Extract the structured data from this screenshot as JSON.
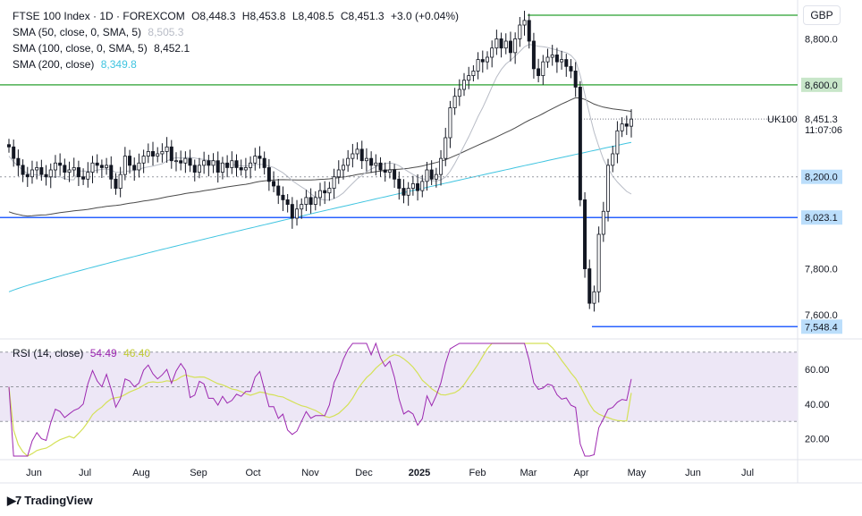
{
  "header": {
    "symbol": "FTSE 100 Index · 1D · FOREXCOM",
    "ohlc": {
      "o": "O8,448.3",
      "h": "H8,453.8",
      "l": "L8,408.5",
      "c": "C8,451.3",
      "chg": "+3.0 (+0.04%)"
    },
    "sma50": {
      "label": "SMA (50, close, 0, SMA, 5)",
      "value": "8,505.3"
    },
    "sma100": {
      "label": "SMA (100, close, 0, SMA, 5)",
      "value": "8,452.1"
    },
    "sma200": {
      "label": "SMA (200, close)",
      "value": "8,349.8"
    },
    "currency": "GBP"
  },
  "rsi_legend": {
    "label": "RSI (14, close)",
    "value": "54.49",
    "ma": "46.40"
  },
  "footer": {
    "brand": "TradingView"
  },
  "colors": {
    "up": "#131722",
    "down": "#131722",
    "sma50": "#b8bcc6",
    "sma100": "#4a4a4a",
    "sma200": "#3fc4e0",
    "hline": "#4caf50",
    "support": "#2962ff",
    "rsi": "#9c27b0",
    "rsi_ma": "#d4e157",
    "rsi_band": "#ede7f6"
  },
  "chart_data": [
    {
      "type": "line",
      "title": "FTSE 100 Index · 1D · FOREXCOM",
      "ylim": [
        7530,
        8930
      ],
      "y_ticks": [
        "8,800.0",
        "7,800.0",
        "7,600.0"
      ],
      "x_ticks": [
        "Jun",
        "Jul",
        "Aug",
        "Sep",
        "Oct",
        "Nov",
        "Dec",
        "2025",
        "Feb",
        "Mar",
        "Apr",
        "May",
        "Jun",
        "Jul"
      ],
      "horizontal_levels": [
        {
          "value": 8903,
          "kind": "resistance"
        },
        {
          "value": 8600,
          "label": "8,600.0",
          "kind": "resistance"
        },
        {
          "value": 8200,
          "label": "8,200.0",
          "kind": "dashed"
        },
        {
          "value": 8023.1,
          "label": "8,023.1",
          "kind": "support"
        },
        {
          "value": 7548.4,
          "label": "7,548.4",
          "kind": "support"
        }
      ],
      "last_price": {
        "value": 8451.3,
        "label": "8,451.3",
        "countdown": "11:07:06",
        "symbol": "UK100"
      },
      "series": [
        {
          "name": "FTSE 100 Index",
          "values": [
            8330,
            8280,
            8250,
            8210,
            8200,
            8230,
            8240,
            8210,
            8200,
            8230,
            8260,
            8250,
            8220,
            8230,
            8240,
            8200,
            8190,
            8220,
            8260,
            8250,
            8240,
            8250,
            8190,
            8150,
            8210,
            8290,
            8250,
            8230,
            8260,
            8290,
            8310,
            8290,
            8300,
            8310,
            8330,
            8270,
            8270,
            8260,
            8280,
            8250,
            8220,
            8250,
            8270,
            8250,
            8270,
            8220,
            8260,
            8240,
            8270,
            8240,
            8230,
            8240,
            8260,
            8290,
            8280,
            8240,
            8180,
            8160,
            8120,
            8100,
            8080,
            8020,
            8060,
            8080,
            8110,
            8080,
            8110,
            8140,
            8130,
            8150,
            8200,
            8230,
            8250,
            8280,
            8300,
            8320,
            8270,
            8280,
            8250,
            8260,
            8230,
            8220,
            8230,
            8190,
            8150,
            8120,
            8150,
            8170,
            8140,
            8180,
            8230,
            8190,
            8210,
            8280,
            8370,
            8500,
            8550,
            8580,
            8620,
            8640,
            8660,
            8710,
            8700,
            8720,
            8760,
            8800,
            8760,
            8790,
            8740,
            8800,
            8860,
            8880,
            8790,
            8670,
            8640,
            8700,
            8720,
            8730,
            8700,
            8710,
            8680,
            8660,
            8590,
            8100,
            7800,
            7650,
            7700,
            7950,
            8050,
            8250,
            8300,
            8400,
            8430,
            8420,
            8451
          ]
        },
        {
          "name": "SMA (50, close, 0, SMA, 5)",
          "value": 8505.3
        },
        {
          "name": "SMA (100, close, 0, SMA, 5)",
          "value": 8452.1
        },
        {
          "name": "SMA (200, close)",
          "value": 8349.8
        }
      ]
    },
    {
      "type": "line",
      "title": "RSI (14, close)",
      "ylim": [
        10,
        75
      ],
      "y_ticks": [
        "60.00",
        "40.00",
        "20.00"
      ],
      "bands": [
        30,
        50,
        70
      ],
      "series": [
        {
          "name": "RSI (14, close)",
          "last": 54.49
        },
        {
          "name": "RSI MA",
          "last": 46.4
        }
      ]
    }
  ]
}
